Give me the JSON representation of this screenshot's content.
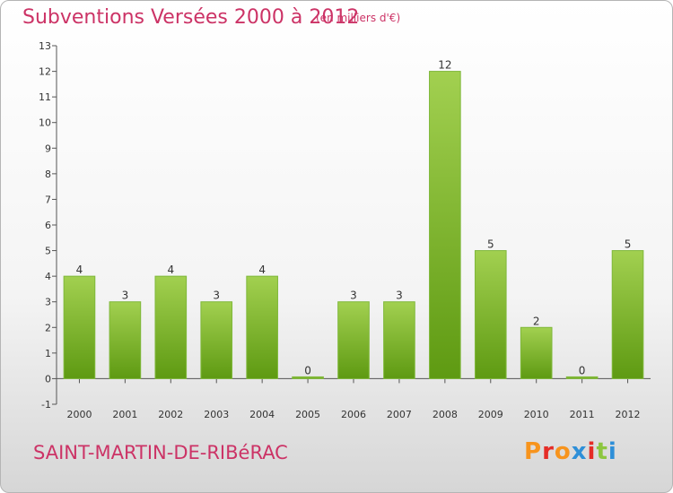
{
  "header": {
    "title": "Subventions Versées 2000 à 2012",
    "subtitle": "(en milliers d'€)"
  },
  "footer": {
    "commune": "SAINT-MARTIN-DE-RIBéRAC",
    "brand": "Proxiti",
    "brand_colors": [
      "#f7941d",
      "#e52d27",
      "#f7941d",
      "#2e8fd8",
      "#e52d27",
      "#8dc63f",
      "#2e8fd8"
    ]
  },
  "chart_data": {
    "type": "bar",
    "title": "Subventions Versées 2000 à 2012",
    "subtitle": "(en milliers d'€)",
    "categories": [
      "2000",
      "2001",
      "2002",
      "2003",
      "2004",
      "2005",
      "2006",
      "2007",
      "2008",
      "2009",
      "2010",
      "2011",
      "2012"
    ],
    "values": [
      4,
      3,
      4,
      3,
      4,
      0,
      3,
      3,
      12,
      5,
      2,
      0,
      5
    ],
    "ylim": [
      -1,
      13
    ],
    "yticks": [
      -1,
      0,
      1,
      2,
      3,
      4,
      5,
      6,
      7,
      8,
      9,
      10,
      11,
      12,
      13
    ],
    "grid": false,
    "bar_color_light": "#a2d050",
    "bar_color_dark": "#5e9a12",
    "axis_color": "#555555"
  }
}
